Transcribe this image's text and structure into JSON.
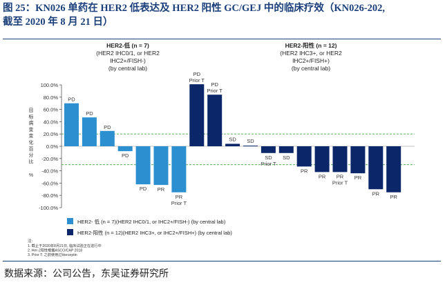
{
  "header": {
    "title_line1": "图 25：KN026 单药在 HER2 低表达及 HER2 阳性 GC/GEJ 中的临床疗效（KN026-202,",
    "title_line2": "截至 2020 年 8 月 21 日）"
  },
  "footer": {
    "source": "数据来源：公司公告，东吴证券研究所"
  },
  "colors": {
    "low": "#2b8fd0",
    "positive": "#0b2769",
    "ref_line": "#3aaa35",
    "title": "#1a3f7a"
  },
  "chart_data": {
    "type": "bar",
    "ylabel": [
      "目",
      "标",
      "病",
      "变",
      "变",
      "化",
      "百",
      "分",
      "比",
      "%"
    ],
    "ylim": [
      -100,
      100
    ],
    "yticks": [
      100,
      80,
      60,
      40,
      20,
      0,
      -20,
      -40,
      -60,
      -80,
      -100
    ],
    "ytick_labels": [
      "100.0%",
      "80.0%",
      "60.0%",
      "40.0%",
      "20.0%",
      "0.0%",
      "-20.0%",
      "-40.0%",
      "-60.0%",
      "-80.0%",
      "-100.0%"
    ],
    "ref_lines": [
      20,
      -30
    ],
    "group_labels": [
      {
        "lines": [
          "HER2-低 (n = 7)",
          "(HER2 IHC0/1, or HER2",
          "IHC2+/FISH-)",
          "(by central lab)"
        ]
      },
      {
        "lines": [
          "HER2-阳性 (n = 12)",
          "(HER2 IHC3+, or HER2",
          "IHC2+/FISH+)",
          "(by central lab)"
        ]
      }
    ],
    "series": [
      {
        "name": "HER2- 低 (n = 7)(HER2 IHC0/1, or IHC2+/FISH-) (by central lab)",
        "bars": [
          {
            "value": 70,
            "label": [
              "PD"
            ]
          },
          {
            "value": 47,
            "label": [
              "PD"
            ]
          },
          {
            "value": 25,
            "label": [
              "PD"
            ]
          },
          {
            "value": -8,
            "label": [
              "PD"
            ]
          },
          {
            "value": -62,
            "label": [
              "PD"
            ]
          },
          {
            "value": -63,
            "label": [
              "PR"
            ]
          },
          {
            "value": -75,
            "label": [
              "PR",
              "Prior T"
            ]
          }
        ]
      },
      {
        "name": "HER2-阳性 (n = 12)(HER2 IHC3+, or IHC2+/FISH+) (by central lab)",
        "bars": [
          {
            "value": 101,
            "label": [
              "PD",
              "Prior T"
            ]
          },
          {
            "value": 84,
            "label": [
              "PD",
              "Prior T"
            ]
          },
          {
            "value": 4,
            "label": [
              "SD"
            ]
          },
          {
            "value": 1,
            "label": [
              "SD"
            ]
          },
          {
            "value": -11,
            "label": [
              "SD",
              "Prior T"
            ]
          },
          {
            "value": -11,
            "label": [
              "SD"
            ]
          },
          {
            "value": -33,
            "label": [
              "PR"
            ]
          },
          {
            "value": -42,
            "label": [
              "PR"
            ]
          },
          {
            "value": -42,
            "label": [
              "PR",
              "Prior T"
            ]
          },
          {
            "value": -44,
            "label": [
              "PR"
            ]
          },
          {
            "value": -70,
            "label": [
              "PR"
            ]
          },
          {
            "value": -75,
            "label": [
              "PR"
            ]
          }
        ]
      }
    ],
    "legend": [
      {
        "text": "HER2- 低 (n = 7)(HER2 IHC0/1, or IHC2+/FISH-) (by central lab)"
      },
      {
        "text": "HER2-阳性 (n = 12)(HER2 IHC3+, or IHC2+/FISH+) (by central lab)"
      }
    ],
    "notes_title": "注:",
    "notes": [
      "1.     截止于2020年8月21日, 临床试验正在进行中",
      "2.     Her-2阳性根据ASCO/CAP 2018",
      "3.     Prior T: 之前使用过Herceptin"
    ]
  }
}
